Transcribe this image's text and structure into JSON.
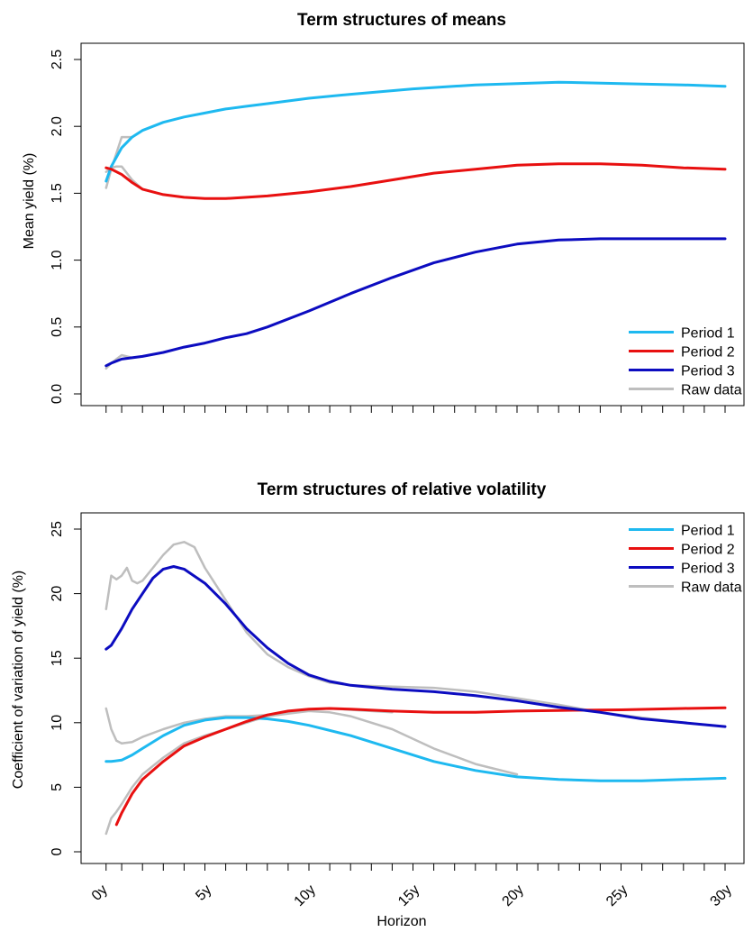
{
  "chart_data": [
    {
      "type": "line",
      "title": "Term structures of means",
      "xlabel": "",
      "ylabel": "Mean yield (%)",
      "xlim": [
        0,
        30
      ],
      "ylim": [
        0,
        2.5
      ],
      "yticks": [
        0.0,
        0.5,
        1.0,
        1.5,
        2.0,
        2.5
      ],
      "ytick_labels": [
        "0.0",
        "0.5",
        "1.0",
        "1.5",
        "2.0",
        "2.5"
      ],
      "xticks": [
        0.25,
        1,
        2,
        3,
        4,
        5,
        6,
        7,
        8,
        9,
        10,
        11,
        12,
        13,
        14,
        15,
        16,
        17,
        18,
        19,
        20,
        21,
        22,
        23,
        24,
        25,
        26,
        27,
        28,
        29,
        30
      ],
      "legend_position": "bottom-right",
      "grid": false,
      "series": [
        {
          "name": "Period 1",
          "color": "#1EB9F0",
          "x": [
            0.25,
            0.5,
            1,
            1.5,
            2,
            2.5,
            3,
            4,
            5,
            6,
            7,
            8,
            10,
            12,
            15,
            18,
            20,
            22,
            25,
            28,
            30
          ],
          "y": [
            1.59,
            1.7,
            1.84,
            1.92,
            1.97,
            2.0,
            2.03,
            2.07,
            2.1,
            2.13,
            2.15,
            2.17,
            2.21,
            2.24,
            2.28,
            2.31,
            2.32,
            2.33,
            2.32,
            2.31,
            2.3
          ]
        },
        {
          "name": "Period 2",
          "color": "#E81010",
          "x": [
            0.25,
            0.5,
            1,
            1.5,
            2,
            3,
            4,
            5,
            6,
            7,
            8,
            10,
            12,
            14,
            16,
            18,
            20,
            22,
            24,
            26,
            28,
            30
          ],
          "y": [
            1.69,
            1.68,
            1.64,
            1.58,
            1.53,
            1.49,
            1.47,
            1.46,
            1.46,
            1.47,
            1.48,
            1.51,
            1.55,
            1.6,
            1.65,
            1.68,
            1.71,
            1.72,
            1.72,
            1.71,
            1.69,
            1.68
          ]
        },
        {
          "name": "Period 3",
          "color": "#0C0CC0",
          "x": [
            0.25,
            0.5,
            1,
            2,
            3,
            4,
            5,
            6,
            7,
            8,
            10,
            12,
            14,
            16,
            18,
            20,
            22,
            24,
            26,
            28,
            30
          ],
          "y": [
            0.21,
            0.23,
            0.26,
            0.28,
            0.31,
            0.35,
            0.38,
            0.42,
            0.45,
            0.5,
            0.62,
            0.75,
            0.87,
            0.98,
            1.06,
            1.12,
            1.15,
            1.16,
            1.16,
            1.16,
            1.16
          ]
        },
        {
          "name": "Raw data",
          "color": "#BEBEBE",
          "x": [
            0.25,
            0.5,
            0.75,
            1,
            1.5,
            2
          ],
          "y": [
            1.54,
            1.68,
            1.8,
            1.92,
            1.92,
            1.97
          ]
        },
        {
          "name": "",
          "color": "#BEBEBE",
          "x": [
            0.25,
            0.5,
            0.75,
            1,
            1.5,
            2,
            3
          ],
          "y": [
            1.66,
            1.69,
            1.7,
            1.7,
            1.6,
            1.53,
            1.49
          ]
        },
        {
          "name": "",
          "color": "#BEBEBE",
          "x": [
            0.25,
            0.5,
            0.75,
            1,
            1.5,
            2,
            3
          ],
          "y": [
            0.19,
            0.23,
            0.26,
            0.29,
            0.27,
            0.28,
            0.31
          ]
        }
      ]
    },
    {
      "type": "line",
      "title": "Term structures of relative volatility",
      "xlabel": "Horizon",
      "ylabel": "Coefficient of variation of yield (%)",
      "xlim": [
        0,
        30
      ],
      "ylim": [
        0,
        25
      ],
      "yticks": [
        0,
        5,
        10,
        15,
        20,
        25
      ],
      "ytick_labels": [
        "0",
        "5",
        "10",
        "15",
        "20",
        "25"
      ],
      "xticks": [
        0.25,
        1,
        2,
        3,
        4,
        5,
        6,
        7,
        8,
        9,
        10,
        11,
        12,
        13,
        14,
        15,
        16,
        17,
        18,
        19,
        20,
        21,
        22,
        23,
        24,
        25,
        26,
        27,
        28,
        29,
        30
      ],
      "xtick_labels": [
        {
          "x": 0,
          "label": "0y"
        },
        {
          "x": 5,
          "label": "5y"
        },
        {
          "x": 10,
          "label": "10y"
        },
        {
          "x": 15,
          "label": "15y"
        },
        {
          "x": 20,
          "label": "20y"
        },
        {
          "x": 25,
          "label": "25y"
        },
        {
          "x": 30,
          "label": "30y"
        }
      ],
      "legend_position": "top-right",
      "grid": false,
      "series": [
        {
          "name": "Period 1",
          "color": "#1EB9F0",
          "x": [
            0.25,
            0.5,
            1,
            1.5,
            2,
            3,
            4,
            5,
            6,
            7,
            8,
            9,
            10,
            12,
            14,
            16,
            18,
            20,
            22,
            24,
            26,
            28,
            30
          ],
          "y": [
            7.0,
            7.0,
            7.1,
            7.5,
            8.0,
            9.0,
            9.8,
            10.2,
            10.4,
            10.4,
            10.3,
            10.1,
            9.8,
            9.0,
            8.0,
            7.0,
            6.3,
            5.8,
            5.6,
            5.5,
            5.5,
            5.6,
            5.7
          ]
        },
        {
          "name": "Period 2",
          "color": "#E81010",
          "x": [
            0.75,
            1,
            1.5,
            2,
            3,
            4,
            5,
            6,
            7,
            8,
            9,
            10,
            11,
            12,
            14,
            16,
            18,
            20,
            22,
            25,
            28,
            30
          ],
          "y": [
            2.1,
            3.0,
            4.5,
            5.6,
            7.0,
            8.2,
            8.9,
            9.5,
            10.1,
            10.6,
            10.9,
            11.05,
            11.1,
            11.05,
            10.9,
            10.8,
            10.8,
            10.9,
            10.95,
            11.0,
            11.1,
            11.15
          ]
        },
        {
          "name": "Period 3",
          "color": "#0C0CC0",
          "x": [
            0.25,
            0.5,
            1,
            1.5,
            2,
            2.5,
            3,
            3.5,
            4,
            5,
            6,
            7,
            8,
            9,
            10,
            11,
            12,
            14,
            16,
            18,
            20,
            22,
            24,
            26,
            28,
            30
          ],
          "y": [
            15.7,
            16.0,
            17.3,
            18.8,
            20.0,
            21.2,
            21.9,
            22.1,
            21.9,
            20.8,
            19.2,
            17.3,
            15.8,
            14.6,
            13.7,
            13.2,
            12.9,
            12.6,
            12.4,
            12.1,
            11.7,
            11.2,
            10.8,
            10.3,
            10.0,
            9.7
          ]
        },
        {
          "name": "Raw data",
          "color": "#BEBEBE",
          "x": [
            0.25,
            0.5,
            0.75,
            1,
            1.25,
            1.5,
            1.75,
            2,
            2.5,
            3,
            3.5,
            4,
            4.5,
            5,
            6,
            7,
            8,
            9,
            10,
            11,
            12,
            14,
            16,
            18,
            20,
            22,
            24,
            26,
            28,
            30
          ],
          "y": [
            18.8,
            21.4,
            21.1,
            21.4,
            22.0,
            21.0,
            20.8,
            21.0,
            22.0,
            23.0,
            23.8,
            24.0,
            23.6,
            22.0,
            19.5,
            17.0,
            15.3,
            14.3,
            13.6,
            13.1,
            12.9,
            12.8,
            12.7,
            12.4,
            11.9,
            11.4,
            10.8,
            10.4,
            10.0,
            9.7
          ]
        },
        {
          "name": "",
          "color": "#BEBEBE",
          "x": [
            0.25,
            0.5,
            0.75,
            1,
            1.5,
            2,
            3,
            4,
            5,
            6,
            7,
            8,
            9,
            10,
            11,
            12,
            14
          ],
          "y": [
            11.1,
            9.5,
            8.6,
            8.4,
            8.5,
            8.9,
            9.5,
            10.0,
            10.3,
            10.5,
            10.5,
            10.6,
            10.8,
            11.0,
            11.1,
            11.0,
            10.8
          ]
        },
        {
          "name": "",
          "color": "#BEBEBE",
          "x": [
            0.25,
            0.5,
            0.75,
            1,
            1.5,
            2,
            3,
            4,
            5,
            6,
            7,
            8,
            9,
            10,
            11,
            12,
            14,
            16,
            18,
            20
          ],
          "y": [
            1.4,
            2.6,
            3.1,
            3.7,
            5.0,
            6.0,
            7.3,
            8.4,
            9.0,
            9.5,
            10.0,
            10.5,
            10.7,
            10.9,
            10.8,
            10.5,
            9.5,
            8.0,
            6.8,
            6.0
          ]
        }
      ]
    }
  ]
}
